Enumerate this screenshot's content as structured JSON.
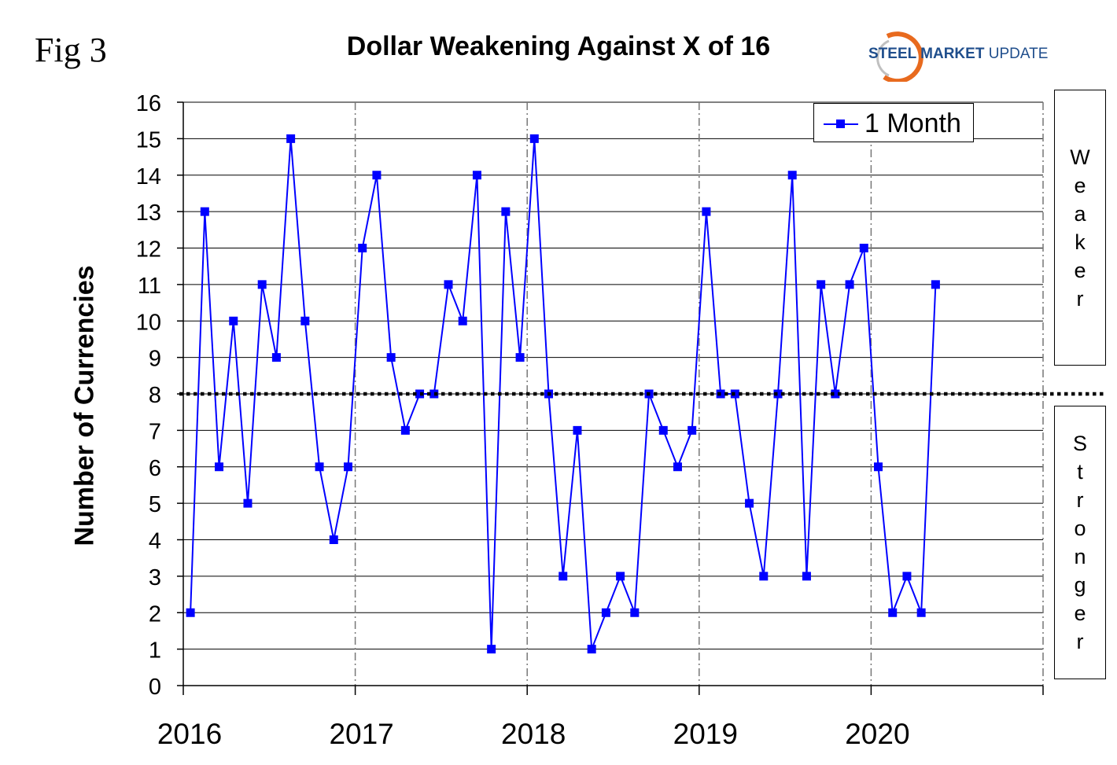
{
  "figure": {
    "fig_label": "Fig 3",
    "logo": {
      "word1": "STEEL MARKET",
      "word2": " UPDATE",
      "ring_color": "#e86a1e"
    }
  },
  "chart_data": {
    "type": "line",
    "title": "Dollar Weakening Against X of 16",
    "xlabel": "",
    "ylabel": "Number of Currencies",
    "ylim": [
      0,
      16
    ],
    "y_ticks": [
      0,
      1,
      2,
      3,
      4,
      5,
      6,
      7,
      8,
      9,
      10,
      11,
      12,
      13,
      14,
      15,
      16
    ],
    "x_tick_labels": [
      "2016",
      "2017",
      "2018",
      "2019",
      "2020"
    ],
    "grid": {
      "horizontal": true,
      "vertical_dashed_at_year_boundaries": true
    },
    "reference_line": {
      "y": 8,
      "style": "dotted",
      "color": "#000000"
    },
    "legend": {
      "position": "top-right"
    },
    "series": [
      {
        "name": "1 Month",
        "color": "#0000ff",
        "marker": "square",
        "values": [
          2,
          13,
          6,
          10,
          5,
          11,
          9,
          15,
          10,
          6,
          4,
          6,
          12,
          14,
          9,
          7,
          8,
          8,
          11,
          10,
          14,
          1,
          13,
          9,
          15,
          8,
          3,
          7,
          1,
          2,
          3,
          2,
          8,
          7,
          6,
          7,
          13,
          8,
          8,
          5,
          3,
          8,
          14,
          3,
          11,
          8,
          11,
          12,
          6,
          2,
          3,
          2,
          11
        ]
      }
    ],
    "side_labels": {
      "upper": "Weaker",
      "lower": "Stronger"
    }
  }
}
